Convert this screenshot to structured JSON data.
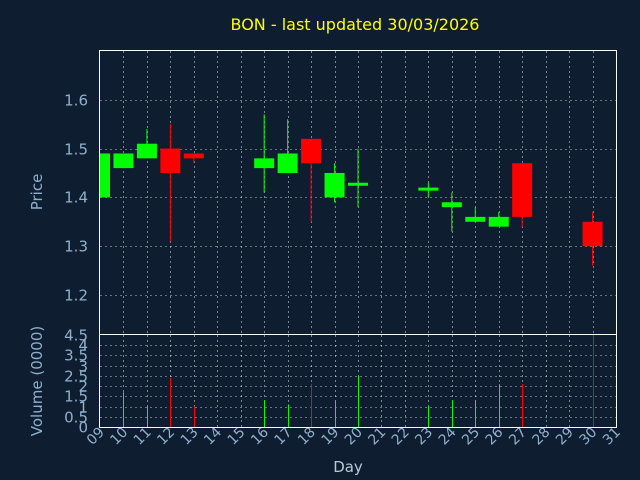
{
  "colors": {
    "background": "#0e1e30",
    "plot_border": "#ffffff",
    "grid": "#ffffff",
    "title": "#ffff00",
    "axis_text": "#8fb0cc",
    "up": "#00ff00",
    "down": "#ff0000"
  },
  "chart_data": [
    {
      "type": "candlestick",
      "title": "BON - last updated 30/03/2026",
      "ylabel": "Price",
      "ylim": [
        1.12,
        1.7
      ],
      "yticks": [
        {
          "value": 1.2,
          "label": "1.2"
        },
        {
          "value": 1.3,
          "label": "1.3"
        },
        {
          "value": 1.4,
          "label": "1.4"
        },
        {
          "value": 1.5,
          "label": "1.5"
        },
        {
          "value": 1.6,
          "label": "1.6"
        }
      ],
      "xlim": [
        9,
        31
      ],
      "grid": true,
      "candles": [
        {
          "day": 9,
          "open": 1.4,
          "high": 1.49,
          "low": 1.4,
          "close": 1.49
        },
        {
          "day": 10,
          "open": 1.46,
          "high": 1.49,
          "low": 1.46,
          "close": 1.49
        },
        {
          "day": 11,
          "open": 1.48,
          "high": 1.54,
          "low": 1.48,
          "close": 1.51
        },
        {
          "day": 12,
          "open": 1.5,
          "high": 1.55,
          "low": 1.31,
          "close": 1.45
        },
        {
          "day": 13,
          "open": 1.49,
          "high": 1.49,
          "low": 1.47,
          "close": 1.48
        },
        {
          "day": 16,
          "open": 1.46,
          "high": 1.57,
          "low": 1.41,
          "close": 1.48
        },
        {
          "day": 17,
          "open": 1.45,
          "high": 1.56,
          "low": 1.45,
          "close": 1.49
        },
        {
          "day": 18,
          "open": 1.52,
          "high": 1.52,
          "low": 1.35,
          "close": 1.47
        },
        {
          "day": 19,
          "open": 1.4,
          "high": 1.47,
          "low": 1.39,
          "close": 1.45
        },
        {
          "day": 20,
          "open": 1.425,
          "high": 1.5,
          "low": 1.38,
          "close": 1.43
        },
        {
          "day": 23,
          "open": 1.415,
          "high": 1.43,
          "low": 1.4,
          "close": 1.42
        },
        {
          "day": 24,
          "open": 1.38,
          "high": 1.41,
          "low": 1.33,
          "close": 1.39
        },
        {
          "day": 25,
          "open": 1.35,
          "high": 1.38,
          "low": 1.35,
          "close": 1.36
        },
        {
          "day": 26,
          "open": 1.34,
          "high": 1.37,
          "low": 1.34,
          "close": 1.36
        },
        {
          "day": 27,
          "open": 1.47,
          "high": 1.47,
          "low": 1.34,
          "close": 1.36
        },
        {
          "day": 30,
          "open": 1.35,
          "high": 1.37,
          "low": 1.26,
          "close": 1.3
        }
      ]
    },
    {
      "type": "bar",
      "ylabel": "Volume (0000)",
      "xlabel": "Day",
      "ylim": [
        0,
        4.5
      ],
      "yticks": [
        {
          "value": 0,
          "label": "0"
        },
        {
          "value": 0.5,
          "label": "0.5"
        },
        {
          "value": 1,
          "label": "1"
        },
        {
          "value": 1.5,
          "label": "1.5"
        },
        {
          "value": 2,
          "label": "2"
        },
        {
          "value": 2.5,
          "label": "2.5"
        },
        {
          "value": 3,
          "label": "3"
        },
        {
          "value": 3.5,
          "label": "3.5"
        },
        {
          "value": 4,
          "label": "4"
        },
        {
          "value": 4.5,
          "label": "4.5"
        }
      ],
      "xticks": [
        {
          "value": 9,
          "label": "09"
        },
        {
          "value": 10,
          "label": "10"
        },
        {
          "value": 11,
          "label": "11"
        },
        {
          "value": 12,
          "label": "12"
        },
        {
          "value": 13,
          "label": "13"
        },
        {
          "value": 14,
          "label": "14"
        },
        {
          "value": 15,
          "label": "15"
        },
        {
          "value": 16,
          "label": "16"
        },
        {
          "value": 17,
          "label": "17"
        },
        {
          "value": 18,
          "label": "18"
        },
        {
          "value": 19,
          "label": "19"
        },
        {
          "value": 20,
          "label": "20"
        },
        {
          "value": 21,
          "label": "21"
        },
        {
          "value": 22,
          "label": "22"
        },
        {
          "value": 23,
          "label": "23"
        },
        {
          "value": 24,
          "label": "24"
        },
        {
          "value": 25,
          "label": "25"
        },
        {
          "value": 26,
          "label": "26"
        },
        {
          "value": 27,
          "label": "27"
        },
        {
          "value": 28,
          "label": "28"
        },
        {
          "value": 29,
          "label": "29"
        },
        {
          "value": 30,
          "label": "30"
        },
        {
          "value": 31,
          "label": "31"
        }
      ],
      "xlim": [
        9,
        31
      ],
      "grid": true,
      "bars": [
        {
          "day": 10,
          "value": 1.7,
          "direction": "up"
        },
        {
          "day": 11,
          "value": 1.0,
          "direction": "up"
        },
        {
          "day": 12,
          "value": 2.4,
          "direction": "down"
        },
        {
          "day": 13,
          "value": 1.0,
          "direction": "down"
        },
        {
          "day": 16,
          "value": 1.3,
          "direction": "up"
        },
        {
          "day": 17,
          "value": 1.1,
          "direction": "up"
        },
        {
          "day": 18,
          "value": 2.1,
          "direction": "down"
        },
        {
          "day": 19,
          "value": 1.3,
          "direction": "up"
        },
        {
          "day": 20,
          "value": 2.5,
          "direction": "up"
        },
        {
          "day": 23,
          "value": 1.0,
          "direction": "up"
        },
        {
          "day": 24,
          "value": 1.3,
          "direction": "up"
        },
        {
          "day": 25,
          "value": 1.3,
          "direction": "up"
        },
        {
          "day": 26,
          "value": 2.1,
          "direction": "up"
        },
        {
          "day": 27,
          "value": 2.1,
          "direction": "down"
        },
        {
          "day": 30,
          "value": 4.5,
          "direction": "down"
        }
      ]
    }
  ]
}
